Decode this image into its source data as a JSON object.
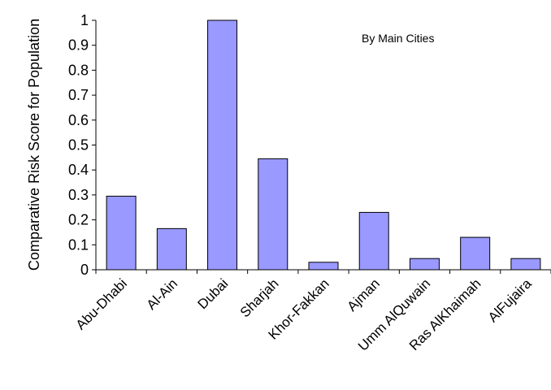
{
  "chart_data": {
    "type": "bar",
    "title": "",
    "annotation": "By Main Cities",
    "xlabel": "",
    "ylabel": "Comparative Risk Score for Population",
    "ylim": [
      0,
      1
    ],
    "yticks": [
      0,
      0.1,
      0.2,
      0.3,
      0.4,
      0.5,
      0.6,
      0.7,
      0.8,
      0.9,
      1
    ],
    "categories": [
      "Abu-Dhabi",
      "Al-Ain",
      "Dubai",
      "Sharjah",
      "Khor-Fakkan",
      "Ajman",
      "Umm AlQuwain",
      "Ras AlKhaimah",
      "AlFujaira"
    ],
    "values": [
      0.295,
      0.165,
      1.0,
      0.445,
      0.03,
      0.23,
      0.045,
      0.13,
      0.045
    ],
    "grid": false,
    "legend": "none",
    "colors": {
      "bar_fill": "#9999ff",
      "bar_stroke": "#000000",
      "axis": "#000000"
    }
  }
}
